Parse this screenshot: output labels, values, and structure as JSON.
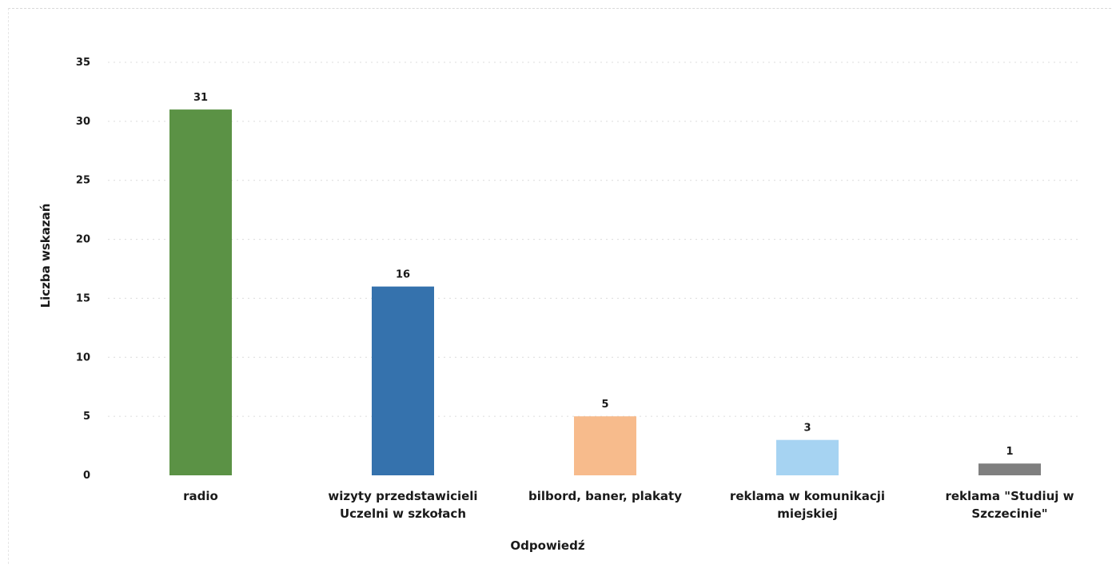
{
  "chart_data": {
    "type": "bar",
    "title": "",
    "xlabel": "Odpowiedź",
    "ylabel": "Liczba wskazań",
    "ylim": [
      0,
      35
    ],
    "yticks": [
      0,
      5,
      10,
      15,
      20,
      25,
      30,
      35
    ],
    "grid": true,
    "legend": "none",
    "categories": [
      [
        "radio"
      ],
      [
        "wizyty przedstawicieli",
        "Uczelni w szkołach"
      ],
      [
        "bilbord, baner, plakaty"
      ],
      [
        "reklama w komunikacji",
        "miejskiej"
      ],
      [
        "reklama \"Studiuj w",
        "Szczecinie\""
      ]
    ],
    "values": [
      31,
      16,
      5,
      3,
      1
    ],
    "colors": [
      "#5b9245",
      "#3572ad",
      "#f7bb8c",
      "#a6d3f2",
      "#7f7f7f"
    ]
  }
}
